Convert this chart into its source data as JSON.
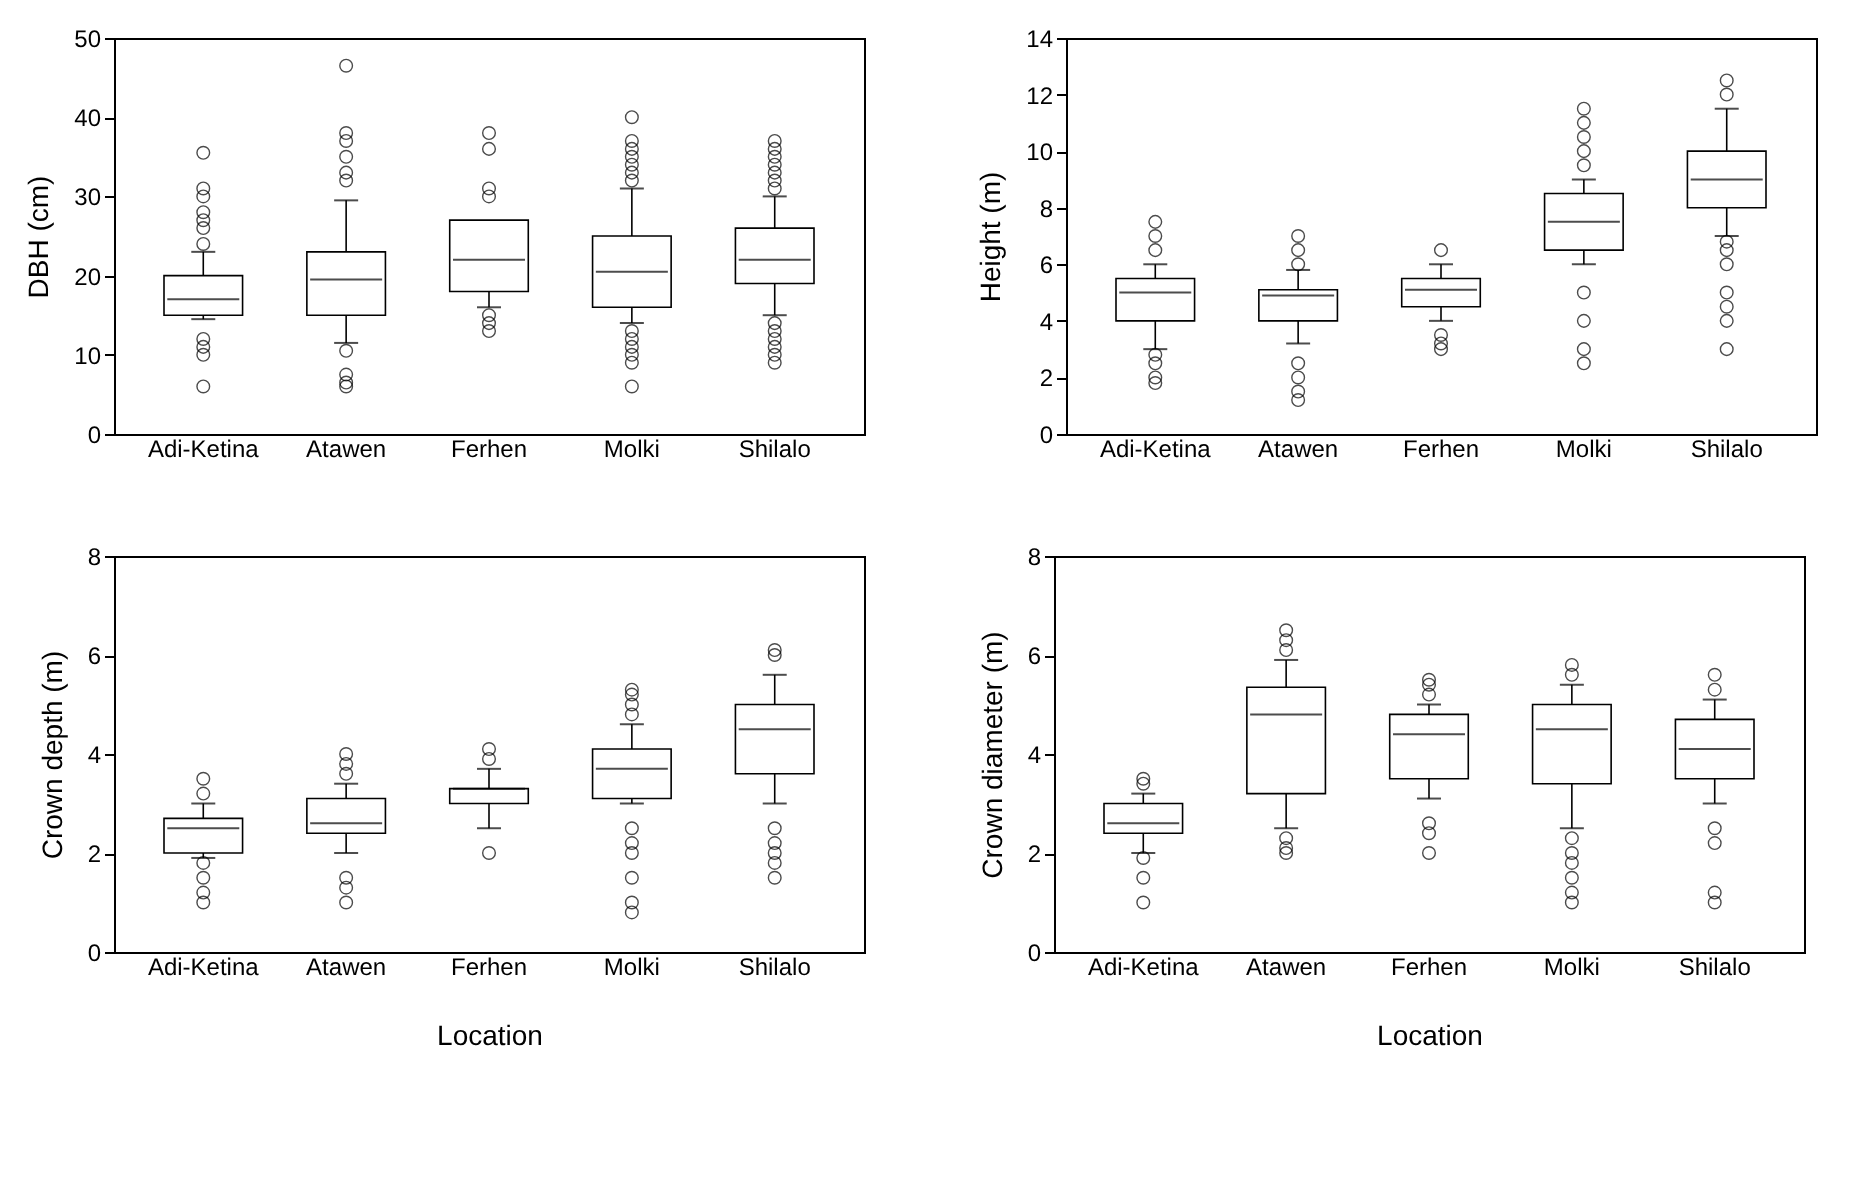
{
  "chart_data": [
    {
      "type": "box",
      "ylabel": "DBH (cm)",
      "categories": [
        "Adi-Ketina",
        "Atawen",
        "Ferhen",
        "Molki",
        "Shilalo"
      ],
      "ylim": [
        0,
        50
      ],
      "yticks": [
        0,
        10,
        20,
        30,
        40,
        50
      ],
      "grid": false,
      "marker": "circle",
      "boxes": [
        {
          "low": 14.5,
          "q1": 15,
          "median": 17,
          "q3": 20,
          "high": 23,
          "outliers": [
            24,
            26,
            27,
            28,
            30,
            31,
            35.5,
            12,
            11,
            10,
            6
          ]
        },
        {
          "low": 11.5,
          "q1": 15,
          "median": 19.5,
          "q3": 23,
          "high": 29.5,
          "outliers": [
            32,
            33,
            35,
            37,
            38,
            46.5,
            10.5,
            7.5,
            6.5,
            6
          ]
        },
        {
          "low": 16,
          "q1": 18,
          "median": 22,
          "q3": 27,
          "high": 27,
          "outliers": [
            30,
            31,
            36,
            38,
            15,
            14,
            13
          ]
        },
        {
          "low": 14,
          "q1": 16,
          "median": 20.5,
          "q3": 25,
          "high": 31,
          "outliers": [
            32,
            33,
            34,
            35,
            36,
            37,
            40,
            13,
            12,
            11,
            10,
            9,
            6
          ]
        },
        {
          "low": 15,
          "q1": 19,
          "median": 22,
          "q3": 26,
          "high": 30,
          "outliers": [
            31,
            32,
            33,
            34,
            35,
            36,
            37,
            14,
            13,
            12,
            11,
            10,
            9
          ]
        }
      ]
    },
    {
      "type": "box",
      "ylabel": "Height (m)",
      "categories": [
        "Adi-Ketina",
        "Atawen",
        "Ferhen",
        "Molki",
        "Shilalo"
      ],
      "ylim": [
        0,
        14
      ],
      "yticks": [
        0,
        2,
        4,
        6,
        8,
        10,
        12,
        14
      ],
      "grid": false,
      "marker": "circle",
      "boxes": [
        {
          "low": 3,
          "q1": 4,
          "median": 5,
          "q3": 5.5,
          "high": 6,
          "outliers": [
            6.5,
            7,
            7.5,
            2.8,
            2.5,
            2,
            1.8
          ]
        },
        {
          "low": 3.2,
          "q1": 4,
          "median": 4.9,
          "q3": 5.1,
          "high": 5.8,
          "outliers": [
            6,
            6.5,
            7,
            2.5,
            2,
            1.5,
            1.2
          ]
        },
        {
          "low": 4,
          "q1": 4.5,
          "median": 5.1,
          "q3": 5.5,
          "high": 6,
          "outliers": [
            6.5,
            3.5,
            3.2,
            3
          ]
        },
        {
          "low": 6,
          "q1": 6.5,
          "median": 7.5,
          "q3": 8.5,
          "high": 9,
          "outliers": [
            9.5,
            10,
            10.5,
            11,
            11.5,
            5,
            4,
            3,
            2.5
          ]
        },
        {
          "low": 7,
          "q1": 8,
          "median": 9,
          "q3": 10,
          "high": 11.5,
          "outliers": [
            12,
            12.5,
            6.8,
            6.5,
            6,
            5,
            4.5,
            4,
            3
          ]
        }
      ]
    },
    {
      "type": "box",
      "ylabel": "Crown depth (m)",
      "xlabel": "Location",
      "categories": [
        "Adi-Ketina",
        "Atawen",
        "Ferhen",
        "Molki",
        "Shilalo"
      ],
      "ylim": [
        0,
        8
      ],
      "yticks": [
        0,
        2,
        4,
        6,
        8
      ],
      "grid": false,
      "marker": "circle",
      "boxes": [
        {
          "low": 1.9,
          "q1": 2,
          "median": 2.5,
          "q3": 2.7,
          "high": 3,
          "outliers": [
            3.2,
            3.5,
            1.8,
            1.5,
            1.2,
            1
          ]
        },
        {
          "low": 2,
          "q1": 2.4,
          "median": 2.6,
          "q3": 3.1,
          "high": 3.4,
          "outliers": [
            3.6,
            3.8,
            4,
            1.5,
            1.3,
            1
          ]
        },
        {
          "low": 2.5,
          "q1": 3,
          "median": 3.3,
          "q3": 3.3,
          "high": 3.7,
          "outliers": [
            3.9,
            4.1,
            2
          ]
        },
        {
          "low": 3,
          "q1": 3.1,
          "median": 3.7,
          "q3": 4.1,
          "high": 4.6,
          "outliers": [
            4.8,
            5,
            5.2,
            5.3,
            2.5,
            2.2,
            2,
            1.5,
            1,
            0.8
          ]
        },
        {
          "low": 3,
          "q1": 3.6,
          "median": 4.5,
          "q3": 5,
          "high": 5.6,
          "outliers": [
            6,
            6.1,
            2.5,
            2.2,
            2,
            1.8,
            1.5
          ]
        }
      ]
    },
    {
      "type": "box",
      "ylabel": "Crown diameter (m)",
      "xlabel": "Location",
      "categories": [
        "Adi-Ketina",
        "Atawen",
        "Ferhen",
        "Molki",
        "Shilalo"
      ],
      "ylim": [
        0,
        8
      ],
      "yticks": [
        0,
        2,
        4,
        6,
        8
      ],
      "grid": false,
      "marker": "circle",
      "boxes": [
        {
          "low": 2,
          "q1": 2.4,
          "median": 2.6,
          "q3": 3,
          "high": 3.2,
          "outliers": [
            3.4,
            3.5,
            1.9,
            1.5,
            1
          ]
        },
        {
          "low": 2.5,
          "q1": 3.2,
          "median": 4.8,
          "q3": 5.35,
          "high": 5.9,
          "outliers": [
            6.1,
            6.3,
            6.5,
            2.3,
            2.1,
            2
          ]
        },
        {
          "low": 3.1,
          "q1": 3.5,
          "median": 4.4,
          "q3": 4.8,
          "high": 5,
          "outliers": [
            5.2,
            5.4,
            5.5,
            2.6,
            2.4,
            2
          ]
        },
        {
          "low": 2.5,
          "q1": 3.4,
          "median": 4.5,
          "q3": 5,
          "high": 5.4,
          "outliers": [
            5.6,
            5.8,
            2.3,
            2,
            1.8,
            1.5,
            1.2,
            1
          ]
        },
        {
          "low": 3,
          "q1": 3.5,
          "median": 4.1,
          "q3": 4.7,
          "high": 5.1,
          "outliers": [
            5.3,
            5.6,
            2.5,
            2.2,
            1.2,
            1
          ]
        }
      ]
    }
  ]
}
